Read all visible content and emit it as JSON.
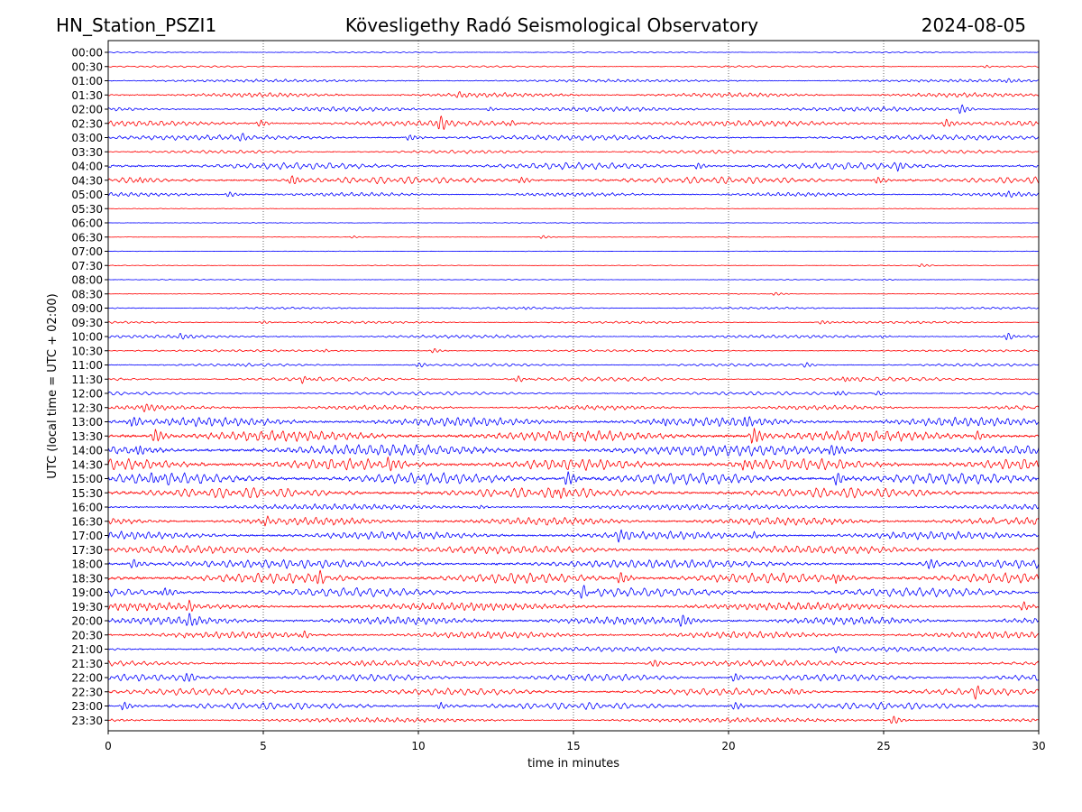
{
  "header": {
    "station": "HN_Station_PSZI1",
    "observatory": "Kövesligethy Radó Seismological Observatory",
    "date": "2024-08-05"
  },
  "chart_data": {
    "type": "line",
    "subtype": "helicorder",
    "title": "Kövesligethy Radó Seismological Observatory",
    "xlabel": "time in minutes",
    "ylabel": "UTC (local time = UTC + 02:00)",
    "xlim": [
      0,
      30
    ],
    "x_ticks": [
      0,
      5,
      10,
      15,
      20,
      25,
      30
    ],
    "x_tick_labels": [
      "0",
      "5",
      "10",
      "15",
      "20",
      "25",
      "30"
    ],
    "vertical_gridlines_at": [
      5,
      10,
      15,
      20,
      25
    ],
    "grid": "vertical dotted",
    "trace_colors": [
      "#0000ff",
      "#ff0000"
    ],
    "color_pattern": "alternating blue/red starting with blue at 00:00",
    "rows": [
      {
        "label": "00:00",
        "activity": 0.1,
        "events": []
      },
      {
        "label": "00:30",
        "activity": 0.15,
        "events": [
          {
            "t": 28.3,
            "amp": 0.25
          }
        ]
      },
      {
        "label": "01:00",
        "activity": 0.25,
        "events": [
          {
            "t": 29.0,
            "amp": 0.25
          }
        ]
      },
      {
        "label": "01:30",
        "activity": 0.4,
        "events": [
          {
            "t": 11.3,
            "amp": 0.4
          }
        ]
      },
      {
        "label": "02:00",
        "activity": 0.4,
        "events": [
          {
            "t": 27.5,
            "amp": 0.9
          },
          {
            "t": 12.3,
            "amp": 0.4
          }
        ]
      },
      {
        "label": "02:30",
        "activity": 0.5,
        "events": [
          {
            "t": 10.7,
            "amp": 1.1
          },
          {
            "t": 4.9,
            "amp": 0.6
          },
          {
            "t": 13.0,
            "amp": 0.6
          },
          {
            "t": 27.0,
            "amp": 0.7
          }
        ]
      },
      {
        "label": "03:00",
        "activity": 0.45,
        "events": [
          {
            "t": 9.7,
            "amp": 0.6
          },
          {
            "t": 4.3,
            "amp": 0.5
          }
        ]
      },
      {
        "label": "03:30",
        "activity": 0.3,
        "events": []
      },
      {
        "label": "04:00",
        "activity": 0.6,
        "events": [
          {
            "t": 19.0,
            "amp": 0.6
          },
          {
            "t": 25.5,
            "amp": 0.6
          }
        ]
      },
      {
        "label": "04:30",
        "activity": 0.6,
        "events": [
          {
            "t": 5.9,
            "amp": 0.9
          },
          {
            "t": 1.0,
            "amp": 0.6
          },
          {
            "t": 24.8,
            "amp": 0.7
          },
          {
            "t": 13.3,
            "amp": 0.6
          }
        ]
      },
      {
        "label": "05:00",
        "activity": 0.35,
        "events": [
          {
            "t": 3.9,
            "amp": 0.5
          },
          {
            "t": 29.0,
            "amp": 0.3
          }
        ]
      },
      {
        "label": "05:30",
        "activity": 0.05,
        "events": []
      },
      {
        "label": "06:00",
        "activity": 0.05,
        "events": []
      },
      {
        "label": "06:30",
        "activity": 0.04,
        "events": [
          {
            "t": 7.9,
            "amp": 0.2
          },
          {
            "t": 14.0,
            "amp": 0.3
          }
        ]
      },
      {
        "label": "07:00",
        "activity": 0.04,
        "events": []
      },
      {
        "label": "07:30",
        "activity": 0.06,
        "events": [
          {
            "t": 26.2,
            "amp": 0.3
          }
        ]
      },
      {
        "label": "08:00",
        "activity": 0.06,
        "events": [
          {
            "t": 25.0,
            "amp": 0.15
          }
        ]
      },
      {
        "label": "08:30",
        "activity": 0.08,
        "events": [
          {
            "t": 21.5,
            "amp": 0.3
          }
        ]
      },
      {
        "label": "09:00",
        "activity": 0.18,
        "events": [
          {
            "t": 13.5,
            "amp": 0.3
          }
        ]
      },
      {
        "label": "09:30",
        "activity": 0.2,
        "events": [
          {
            "t": 5.0,
            "amp": 0.3
          },
          {
            "t": 23.0,
            "amp": 0.4
          }
        ]
      },
      {
        "label": "10:00",
        "activity": 0.28,
        "events": [
          {
            "t": 29.0,
            "amp": 0.8
          },
          {
            "t": 2.3,
            "amp": 0.4
          },
          {
            "t": 25.0,
            "amp": 0.3
          }
        ]
      },
      {
        "label": "10:30",
        "activity": 0.18,
        "events": [
          {
            "t": 10.5,
            "amp": 0.4
          },
          {
            "t": 7.0,
            "amp": 0.3
          }
        ]
      },
      {
        "label": "11:00",
        "activity": 0.25,
        "events": [
          {
            "t": 4.0,
            "amp": 0.3
          },
          {
            "t": 10.0,
            "amp": 0.4
          },
          {
            "t": 22.5,
            "amp": 0.4
          }
        ]
      },
      {
        "label": "11:30",
        "activity": 0.35,
        "events": [
          {
            "t": 6.3,
            "amp": 0.6
          },
          {
            "t": 23.8,
            "amp": 0.6
          },
          {
            "t": 13.2,
            "amp": 0.5
          }
        ]
      },
      {
        "label": "12:00",
        "activity": 0.3,
        "events": [
          {
            "t": 23.5,
            "amp": 0.5
          },
          {
            "t": 24.8,
            "amp": 0.4
          }
        ]
      },
      {
        "label": "12:30",
        "activity": 0.4,
        "events": [
          {
            "t": 1.2,
            "amp": 0.6
          },
          {
            "t": 29.5,
            "amp": 0.6
          }
        ]
      },
      {
        "label": "13:00",
        "activity": 0.8,
        "events": [
          {
            "t": 20.5,
            "amp": 1.3
          },
          {
            "t": 0.8,
            "amp": 1.0
          },
          {
            "t": 18.0,
            "amp": 1.0
          }
        ]
      },
      {
        "label": "13:30",
        "activity": 0.95,
        "events": [
          {
            "t": 20.8,
            "amp": 1.4
          },
          {
            "t": 1.5,
            "amp": 1.2
          },
          {
            "t": 28.0,
            "amp": 1.0
          }
        ]
      },
      {
        "label": "14:00",
        "activity": 1.0,
        "events": [
          {
            "t": 1.0,
            "amp": 1.3
          },
          {
            "t": 23.3,
            "amp": 1.2
          }
        ]
      },
      {
        "label": "14:30",
        "activity": 1.0,
        "events": [
          {
            "t": 9.0,
            "amp": 1.2
          },
          {
            "t": 20.5,
            "amp": 1.2
          }
        ]
      },
      {
        "label": "15:00",
        "activity": 1.0,
        "events": [
          {
            "t": 1.5,
            "amp": 1.3
          },
          {
            "t": 14.8,
            "amp": 1.3
          },
          {
            "t": 23.5,
            "amp": 1.2
          }
        ]
      },
      {
        "label": "15:30",
        "activity": 0.9,
        "events": [
          {
            "t": 14.5,
            "amp": 1.1
          }
        ]
      },
      {
        "label": "16:00",
        "activity": 0.5,
        "events": [
          {
            "t": 12.0,
            "amp": 0.4
          },
          {
            "t": 19.5,
            "amp": 0.4
          }
        ]
      },
      {
        "label": "16:30",
        "activity": 0.7,
        "events": [
          {
            "t": 5.1,
            "amp": 0.9
          },
          {
            "t": 28.5,
            "amp": 0.9
          }
        ]
      },
      {
        "label": "17:00",
        "activity": 0.7,
        "events": [
          {
            "t": 16.5,
            "amp": 0.8
          },
          {
            "t": 20.8,
            "amp": 0.8
          }
        ]
      },
      {
        "label": "17:30",
        "activity": 0.7,
        "events": []
      },
      {
        "label": "18:00",
        "activity": 0.75,
        "events": [
          {
            "t": 26.5,
            "amp": 0.9
          },
          {
            "t": 0.8,
            "amp": 0.8
          }
        ]
      },
      {
        "label": "18:30",
        "activity": 0.9,
        "events": [
          {
            "t": 6.8,
            "amp": 1.1
          },
          {
            "t": 16.5,
            "amp": 1.1
          },
          {
            "t": 23.5,
            "amp": 1.1
          }
        ]
      },
      {
        "label": "19:00",
        "activity": 0.8,
        "events": [
          {
            "t": 1.8,
            "amp": 0.9
          },
          {
            "t": 15.3,
            "amp": 0.9
          }
        ]
      },
      {
        "label": "19:30",
        "activity": 0.7,
        "events": [
          {
            "t": 2.6,
            "amp": 1.0
          },
          {
            "t": 29.5,
            "amp": 0.8
          }
        ]
      },
      {
        "label": "20:00",
        "activity": 0.7,
        "events": [
          {
            "t": 18.5,
            "amp": 0.9
          },
          {
            "t": 2.6,
            "amp": 0.8
          }
        ]
      },
      {
        "label": "20:30",
        "activity": 0.6,
        "events": [
          {
            "t": 6.3,
            "amp": 0.9
          },
          {
            "t": 2.5,
            "amp": 0.7
          }
        ]
      },
      {
        "label": "21:00",
        "activity": 0.4,
        "events": [
          {
            "t": 23.5,
            "amp": 0.5
          }
        ]
      },
      {
        "label": "21:30",
        "activity": 0.5,
        "events": [
          {
            "t": 17.6,
            "amp": 0.6
          },
          {
            "t": 8.0,
            "amp": 0.4
          }
        ]
      },
      {
        "label": "22:00",
        "activity": 0.6,
        "events": [
          {
            "t": 2.5,
            "amp": 0.8
          },
          {
            "t": 20.2,
            "amp": 0.8
          }
        ]
      },
      {
        "label": "22:30",
        "activity": 0.6,
        "events": [
          {
            "t": 28.0,
            "amp": 0.9
          },
          {
            "t": 22.0,
            "amp": 0.7
          }
        ]
      },
      {
        "label": "23:00",
        "activity": 0.6,
        "events": [
          {
            "t": 0.5,
            "amp": 0.8
          },
          {
            "t": 10.7,
            "amp": 0.7
          },
          {
            "t": 20.2,
            "amp": 0.7
          }
        ]
      },
      {
        "label": "23:30",
        "activity": 0.4,
        "events": [
          {
            "t": 25.3,
            "amp": 0.8
          }
        ]
      }
    ]
  }
}
